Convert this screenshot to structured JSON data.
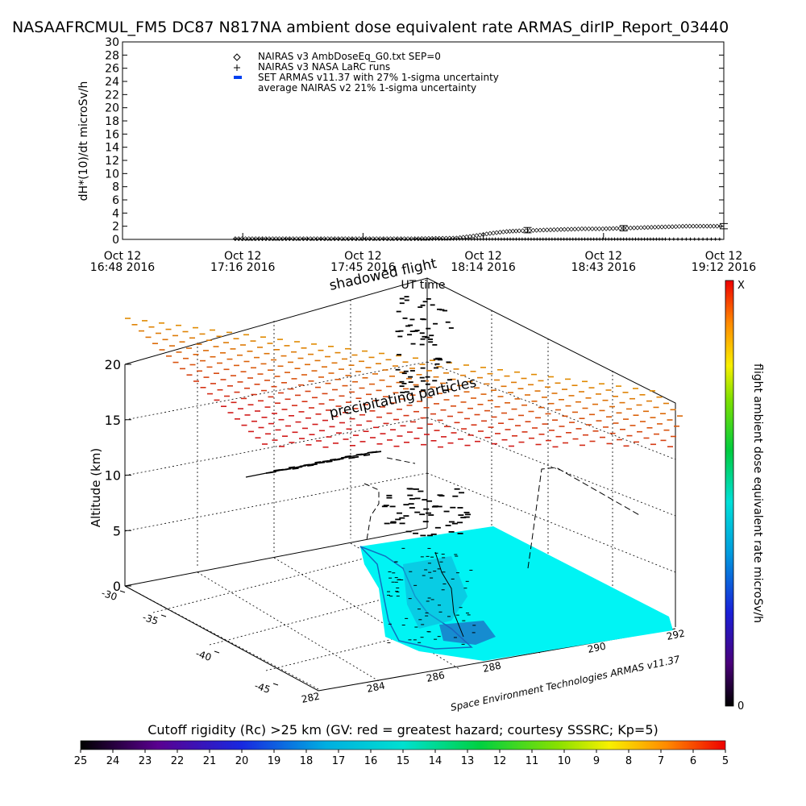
{
  "title": "NASAAFRCMUL_FM5 DC87 N817NA ambient dose equivalent rate ARMAS_dirIP_Report_03440",
  "top_chart": {
    "ylabel": "dH*(10)/dt microSv/h",
    "xlabel": "UT time",
    "legend": [
      {
        "marker": "diamond",
        "text": "NAIRAS v3 AmbDoseEq_G0.txt SEP=0"
      },
      {
        "marker": "plus",
        "text": "NAIRAS v3 NASA LaRC runs"
      },
      {
        "marker": "blue-bar",
        "text": "SET ARMAS v11.37 with 27% 1-sigma uncertainty"
      },
      {
        "marker": "none",
        "text": "average NAIRAS v2 21% 1-sigma uncertainty"
      }
    ],
    "x_ticks": [
      {
        "line1": "Oct 12",
        "line2": "16:48 2016"
      },
      {
        "line1": "Oct 12",
        "line2": "17:16 2016"
      },
      {
        "line1": "Oct 12",
        "line2": "17:45 2016"
      },
      {
        "line1": "Oct 12",
        "line2": "18:14 2016"
      },
      {
        "line1": "Oct 12",
        "line2": "18:43 2016"
      },
      {
        "line1": "Oct 12",
        "line2": "19:12 2016"
      }
    ]
  },
  "chart_data": [
    {
      "type": "scatter",
      "title": "NASAAFRCMUL_FM5 DC87 N817NA ambient dose equivalent rate ARMAS_dirIP_Report_03440",
      "xlabel": "UT time",
      "ylabel": "dH*(10)/dt microSv/h",
      "ylim": [
        0,
        30
      ],
      "yticks": [
        0,
        2,
        4,
        6,
        8,
        10,
        12,
        14,
        16,
        18,
        20,
        22,
        24,
        26,
        28,
        30
      ],
      "x_range_minutes": [
        0,
        144
      ],
      "series": [
        {
          "name": "NAIRAS v3 AmbDoseEq_G0.txt SEP=0",
          "x": [
            27,
            40,
            55,
            70,
            80,
            84,
            88,
            92,
            95,
            100,
            105,
            110,
            115,
            120,
            125,
            130,
            135,
            140,
            144
          ],
          "y": [
            0.1,
            0.1,
            0.1,
            0.1,
            0.2,
            0.5,
            0.9,
            1.2,
            1.3,
            1.4,
            1.5,
            1.6,
            1.6,
            1.7,
            1.8,
            1.9,
            2.0,
            2.0,
            2.0
          ]
        },
        {
          "name": "NAIRAS v3 NASA LaRC runs",
          "x": [
            27,
            40,
            55,
            70,
            80,
            90,
            100,
            110,
            120,
            130,
            144
          ],
          "y": [
            0.05,
            0.05,
            0.05,
            0.05,
            0.05,
            0.05,
            0.05,
            0.05,
            0.05,
            0.05,
            0.05
          ]
        }
      ]
    },
    {
      "type": "scatter",
      "title": "",
      "zlabel": "Altitude (km)",
      "zlim": [
        0,
        20
      ],
      "zticks": [
        0,
        5,
        10,
        15,
        20
      ],
      "lat_ticks": [
        -30,
        -35,
        -40,
        -45
      ],
      "lon_ticks": [
        282,
        284,
        286,
        288,
        290,
        292
      ],
      "annotations": [
        "shadowed flight",
        "precipitating particles"
      ],
      "colorbar": {
        "label": "flight ambient dose equivalent rate microSv/h",
        "top": "X",
        "bottom": "0"
      },
      "rigidity_scale": {
        "label": "Cutoff rigidity (Rc) >25 km (GV: red = greatest hazard; courtesy SSSRC; Kp=5)",
        "ticks": [
          "25",
          "24",
          "23",
          "22",
          "21",
          "20",
          "19",
          "18",
          "17",
          "16",
          "15",
          "14",
          "13",
          "12",
          "11",
          "10",
          "9",
          "8",
          "7",
          "6",
          "5"
        ]
      }
    }
  ],
  "credit": "Space Environment Technologies ARMAS v11.37",
  "colors": {
    "surface": "#00f4f4",
    "land_edge": "#1070c0",
    "precip_top": "#e08a00",
    "precip_bottom": "#d11a1a"
  }
}
